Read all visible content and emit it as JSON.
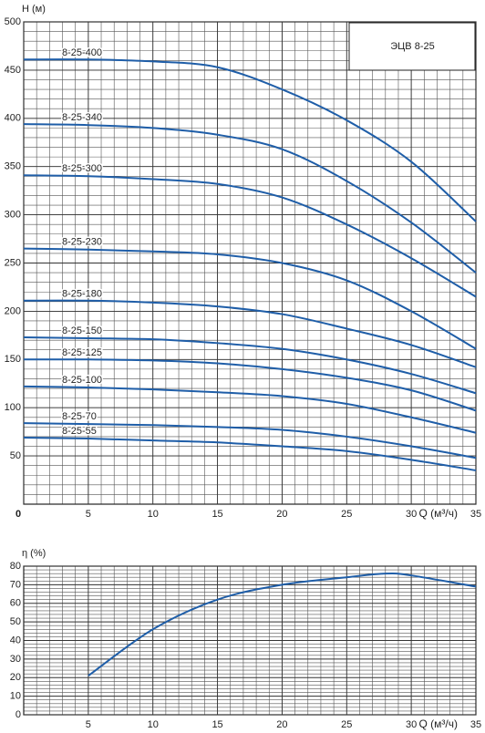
{
  "chart_data": [
    {
      "type": "line",
      "y_label": "H (м)",
      "x_label": "Q (м³/ч)",
      "legend_title": "ЭЦВ 8-25",
      "x": [
        0,
        5,
        10,
        15,
        20,
        25,
        30,
        35
      ],
      "xlim": [
        0,
        35
      ],
      "xticks": [
        0,
        5,
        10,
        15,
        20,
        25,
        30,
        35
      ],
      "ylim": [
        0,
        500
      ],
      "yticks": [
        50,
        100,
        150,
        200,
        250,
        300,
        350,
        400,
        450,
        500
      ],
      "grid": true,
      "series": [
        {
          "name": "8-25-400",
          "color": "#1f5ea8",
          "values": [
            461,
            461,
            459,
            453,
            430,
            398,
            355,
            293
          ]
        },
        {
          "name": "8-25-340",
          "color": "#1f5ea8",
          "values": [
            394,
            393,
            390,
            383,
            368,
            335,
            292,
            240
          ]
        },
        {
          "name": "8-25-300",
          "color": "#1f5ea8",
          "values": [
            341,
            340,
            337,
            332,
            318,
            290,
            255,
            215
          ]
        },
        {
          "name": "8-25-230",
          "color": "#1f5ea8",
          "values": [
            265,
            264,
            262,
            259,
            250,
            232,
            200,
            161
          ]
        },
        {
          "name": "8-25-180",
          "color": "#1f5ea8",
          "values": [
            211,
            211,
            209,
            205,
            197,
            182,
            165,
            142
          ]
        },
        {
          "name": "8-25-150",
          "color": "#1f5ea8",
          "values": [
            173,
            172,
            171,
            167,
            161,
            150,
            135,
            115
          ]
        },
        {
          "name": "8-25-125",
          "color": "#1f5ea8",
          "values": [
            150,
            150,
            149,
            146,
            140,
            131,
            118,
            97
          ]
        },
        {
          "name": "8-25-100",
          "color": "#1f5ea8",
          "values": [
            122,
            121,
            119,
            116,
            112,
            104,
            90,
            74
          ]
        },
        {
          "name": "8-25-70",
          "color": "#1f5ea8",
          "values": [
            84,
            83,
            82,
            80,
            77,
            70,
            60,
            48
          ]
        },
        {
          "name": "8-25-55",
          "color": "#1f5ea8",
          "values": [
            69,
            68,
            66,
            64,
            60,
            55,
            46,
            35
          ]
        }
      ]
    },
    {
      "type": "line",
      "y_label": "η (%)",
      "x_label": "Q (м³/ч)",
      "x": [
        5,
        10,
        15,
        20,
        25,
        28,
        30,
        35
      ],
      "xlim": [
        0,
        35
      ],
      "xticks": [
        5,
        10,
        15,
        20,
        25,
        30,
        35
      ],
      "ylim": [
        0,
        80
      ],
      "yticks": [
        0,
        10,
        20,
        30,
        40,
        50,
        60,
        70,
        80
      ],
      "grid": true,
      "series": [
        {
          "color": "#1f5ea8",
          "values": [
            21,
            46,
            62,
            70,
            74,
            76,
            75,
            69
          ]
        }
      ]
    }
  ]
}
